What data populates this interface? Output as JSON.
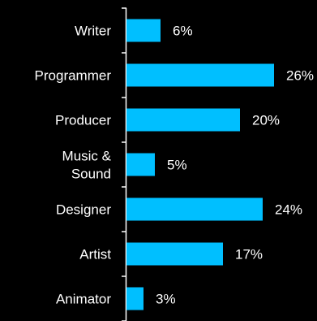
{
  "chart_data": {
    "type": "bar",
    "orientation": "horizontal",
    "categories": [
      "Writer",
      "Programmer",
      "Producer",
      "Music & Sound",
      "Designer",
      "Artist",
      "Animator"
    ],
    "category_lines": [
      [
        "Writer"
      ],
      [
        "Programmer"
      ],
      [
        "Producer"
      ],
      [
        "Music &",
        "Sound"
      ],
      [
        "Designer"
      ],
      [
        "Artist"
      ],
      [
        "Animator"
      ]
    ],
    "values": [
      6,
      26,
      20,
      5,
      24,
      17,
      3
    ],
    "value_labels": [
      "6%",
      "26%",
      "20%",
      "5%",
      "24%",
      "17%",
      "3%"
    ],
    "unit": "%",
    "xlim": [
      0,
      27
    ],
    "title": "",
    "xlabel": "",
    "ylabel": "",
    "grid": false,
    "bar_color": "#00BFFF",
    "text_color": "#FFFFFF",
    "background": "#000000"
  }
}
